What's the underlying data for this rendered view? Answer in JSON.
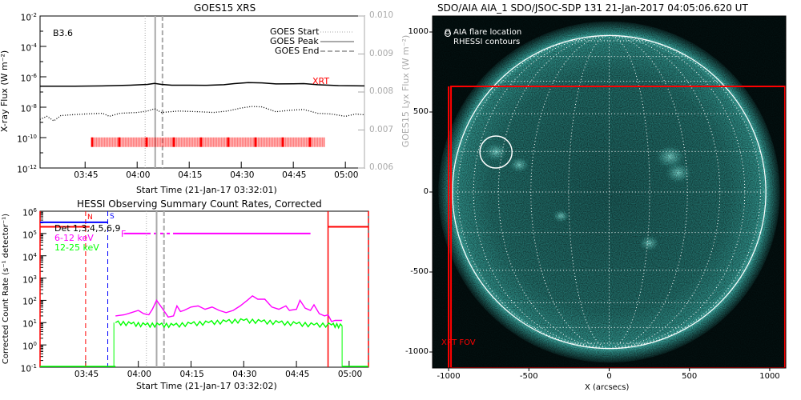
{
  "chart_data": [
    {
      "type": "line",
      "title": "GOES15 XRS",
      "xlabel": "Start Time (21-Jan-17 03:32:01)",
      "ylabel": "X-ray Flux (W m⁻²)",
      "ylabel_right": "GOES15 Lyx Flux (W m⁻²)",
      "x_units": "minutes after 03:30 UT",
      "xlim": [
        2.02,
        95.5
      ],
      "ylim_log10": [
        -12,
        -2
      ],
      "ylim_right": [
        0.006,
        0.01
      ],
      "x_ticks": [
        {
          "min": 15,
          "label": "03:45"
        },
        {
          "min": 30,
          "label": "04:00"
        },
        {
          "min": 45,
          "label": "04:15"
        },
        {
          "min": 60,
          "label": "04:30"
        },
        {
          "min": 75,
          "label": "04:45"
        },
        {
          "min": 90,
          "label": "05:00"
        }
      ],
      "y_ticks": [
        {
          "exp": -2,
          "label": "-2"
        },
        {
          "exp": -4,
          "label": "-4"
        },
        {
          "exp": -6,
          "label": "-6"
        },
        {
          "exp": -8,
          "label": "-8"
        },
        {
          "exp": -10,
          "label": "-10"
        },
        {
          "exp": -12,
          "label": "-12"
        }
      ],
      "y_ticks_right": [
        "0.010",
        "0.009",
        "0.008",
        "0.007",
        "0.006"
      ],
      "class_label": "B3.6",
      "legend": [
        {
          "label": "GOES Start",
          "style": "dotted"
        },
        {
          "label": "GOES Peak",
          "style": "solid"
        },
        {
          "label": "GOES End",
          "style": "dashed"
        }
      ],
      "legend_placement": "top-right",
      "event_lines": {
        "start": 32.3,
        "peak": 35.2,
        "end": 37.3
      },
      "series": [
        {
          "name": "GOES long (1-8 A)",
          "style": "solid",
          "color": "#000000",
          "points": [
            [
              2,
              -6.62
            ],
            [
              12,
              -6.62
            ],
            [
              20,
              -6.6
            ],
            [
              28,
              -6.55
            ],
            [
              33,
              -6.5
            ],
            [
              35,
              -6.43
            ],
            [
              37,
              -6.5
            ],
            [
              40,
              -6.55
            ],
            [
              45,
              -6.55
            ],
            [
              50,
              -6.56
            ],
            [
              55,
              -6.52
            ],
            [
              58,
              -6.45
            ],
            [
              62,
              -6.38
            ],
            [
              66,
              -6.4
            ],
            [
              70,
              -6.47
            ],
            [
              75,
              -6.46
            ],
            [
              78,
              -6.45
            ],
            [
              82,
              -6.52
            ],
            [
              88,
              -6.58
            ],
            [
              95.5,
              -6.6
            ]
          ]
        },
        {
          "name": "GOES short (0.5-4 A)",
          "style": "dotted",
          "color": "#000000",
          "points": [
            [
              2,
              -8.8
            ],
            [
              4,
              -8.6
            ],
            [
              6,
              -8.9
            ],
            [
              8,
              -8.55
            ],
            [
              11,
              -8.5
            ],
            [
              15,
              -8.45
            ],
            [
              20,
              -8.4
            ],
            [
              22,
              -8.6
            ],
            [
              25,
              -8.4
            ],
            [
              30,
              -8.35
            ],
            [
              33,
              -8.25
            ],
            [
              35,
              -8.1
            ],
            [
              37,
              -8.35
            ],
            [
              42,
              -8.25
            ],
            [
              48,
              -8.3
            ],
            [
              52,
              -8.35
            ],
            [
              56,
              -8.25
            ],
            [
              60,
              -8.05
            ],
            [
              63,
              -7.95
            ],
            [
              66,
              -7.98
            ],
            [
              70,
              -8.3
            ],
            [
              74,
              -8.2
            ],
            [
              78,
              -8.15
            ],
            [
              82,
              -8.4
            ],
            [
              86,
              -8.45
            ],
            [
              90,
              -8.6
            ],
            [
              93,
              -8.45
            ],
            [
              95.5,
              -8.5
            ]
          ]
        }
      ],
      "xrt": {
        "label": "XRT",
        "color": "#ff0000",
        "start_min": 17,
        "end_min": 84,
        "level_log10": -10.3
      }
    },
    {
      "type": "line",
      "title": "HESSI Observing Summary Count Rates, Corrected",
      "xlabel": "Start Time (21-Jan-17 03:32:02)",
      "ylabel": "Corrected Count Rate (s⁻¹ detector⁻¹)",
      "x_units": "minutes after 03:30 UT",
      "xlim": [
        2.03,
        95.5
      ],
      "ylim_log10": [
        -1,
        6
      ],
      "x_ticks": [
        {
          "min": 15,
          "label": "03:45"
        },
        {
          "min": 30,
          "label": "04:00"
        },
        {
          "min": 45,
          "label": "04:15"
        },
        {
          "min": 60,
          "label": "04:30"
        },
        {
          "min": 75,
          "label": "04:45"
        },
        {
          "min": 90,
          "label": "05:00"
        }
      ],
      "y_ticks": [
        {
          "exp": 6,
          "label": "6"
        },
        {
          "exp": 5,
          "label": "5"
        },
        {
          "exp": 4,
          "label": "4"
        },
        {
          "exp": 3,
          "label": "3"
        },
        {
          "exp": 2,
          "label": "2"
        },
        {
          "exp": 1,
          "label": "1"
        },
        {
          "exp": 0,
          "label": "0"
        },
        {
          "exp": -1,
          "label": "-1"
        }
      ],
      "legend": [
        {
          "label": "Det 1,3,4,5,6,9",
          "color": "#000000"
        },
        {
          "label": "6-12 keV",
          "color": "#ff00ff"
        },
        {
          "label": "12-25 keV",
          "color": "#00ff00"
        }
      ],
      "legend_placement": "top-left",
      "flags": {
        "S_label": "S",
        "N_label": "N",
        "F_label": "F",
        "saa_end_min": 15.0,
        "night_end_min": 21.3,
        "night_start_min": 84.0,
        "flare_start_min": 26,
        "flare_end_min": 79
      },
      "series": [
        {
          "name": "6-12 keV",
          "color": "#ff00ff",
          "points": [
            [
              23.5,
              1.3
            ],
            [
              26,
              1.35
            ],
            [
              28,
              1.45
            ],
            [
              30,
              1.55
            ],
            [
              31.5,
              1.4
            ],
            [
              33,
              1.35
            ],
            [
              34,
              1.6
            ],
            [
              35.2,
              2.0
            ],
            [
              37,
              1.6
            ],
            [
              38.5,
              1.25
            ],
            [
              40,
              1.3
            ],
            [
              41,
              1.75
            ],
            [
              42,
              1.5
            ],
            [
              43,
              1.55
            ],
            [
              45,
              1.7
            ],
            [
              47,
              1.75
            ],
            [
              49,
              1.6
            ],
            [
              51,
              1.7
            ],
            [
              53,
              1.55
            ],
            [
              55,
              1.45
            ],
            [
              57,
              1.55
            ],
            [
              59,
              1.75
            ],
            [
              61,
              2.0
            ],
            [
              62.5,
              2.2
            ],
            [
              64,
              2.05
            ],
            [
              66,
              2.05
            ],
            [
              68,
              1.7
            ],
            [
              70,
              1.6
            ],
            [
              72,
              1.75
            ],
            [
              73,
              1.55
            ],
            [
              75,
              1.6
            ],
            [
              76,
              2.0
            ],
            [
              77.5,
              1.65
            ],
            [
              79,
              1.55
            ],
            [
              80,
              1.8
            ],
            [
              81.5,
              1.4
            ],
            [
              83,
              1.3
            ],
            [
              84,
              1.35
            ],
            [
              85,
              1.05
            ],
            [
              86,
              1.1
            ],
            [
              88,
              1.1
            ]
          ]
        },
        {
          "name": "12-25 keV",
          "color": "#00ff00",
          "points": [
            [
              23.5,
              1.0
            ],
            [
              28,
              0.95
            ],
            [
              32,
              0.9
            ],
            [
              36,
              0.9
            ],
            [
              40,
              0.88
            ],
            [
              45,
              0.95
            ],
            [
              50,
              1.0
            ],
            [
              55,
              1.05
            ],
            [
              60,
              1.1
            ],
            [
              65,
              1.05
            ],
            [
              70,
              1.0
            ],
            [
              75,
              0.95
            ],
            [
              80,
              0.9
            ],
            [
              85,
              0.9
            ],
            [
              88,
              0.85
            ]
          ]
        }
      ],
      "event_lines": {
        "start": 32.3,
        "peak": 35.2,
        "end": 37.3
      }
    },
    {
      "type": "heatmap",
      "title": "SDO/AIA AIA_1 SDO/JSOC-SDP 131 21-Jan-2017 04:05:06.620 UT",
      "xlabel": "X (arcsecs)",
      "ylabel": "",
      "xlim": [
        -1100,
        1100
      ],
      "ylim": [
        -1100,
        1100
      ],
      "x_ticks": [
        "-1000",
        "-500",
        "0",
        "500",
        "1000"
      ],
      "y_ticks": [
        "1000",
        "500",
        "0",
        "-500",
        "-1000"
      ],
      "solar_radius_arcsec": 976,
      "legend": [
        "O AIA flare location",
        "RHESSI contours"
      ],
      "legend_placement": "top-left",
      "flare_location": {
        "x": -705,
        "y": 250,
        "radius_arcsec": 100
      },
      "xrt_fov": {
        "label": "XRT FOV",
        "x_range": [
          -985,
          1100
        ],
        "y_range": [
          -1100,
          660
        ],
        "color": "#ff0000"
      },
      "colormap": "aia-131-teal"
    }
  ]
}
